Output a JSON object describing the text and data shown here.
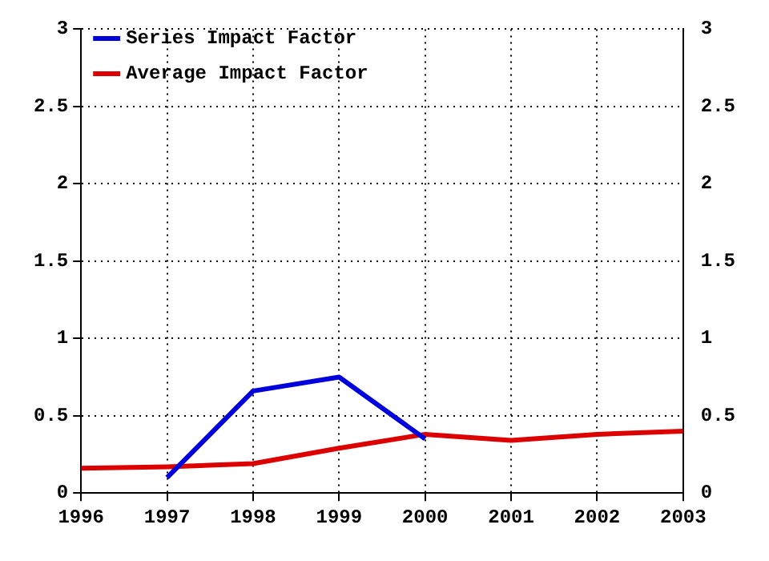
{
  "chart_data": {
    "type": "line",
    "x": [
      1996,
      1997,
      1998,
      1999,
      2000,
      2001,
      2002,
      2003
    ],
    "series": [
      {
        "name": "Series Impact Factor",
        "color": "#0000dd",
        "values": [
          null,
          0.1,
          0.66,
          0.75,
          0.35,
          null,
          null,
          null
        ]
      },
      {
        "name": "Average Impact Factor",
        "color": "#dd0000",
        "values": [
          0.16,
          0.17,
          0.19,
          0.29,
          0.38,
          0.34,
          0.38,
          0.4
        ]
      }
    ],
    "xlim": [
      1996,
      2003
    ],
    "xticks": [
      1996,
      1997,
      1998,
      1999,
      2000,
      2001,
      2002,
      2003
    ],
    "ylim": [
      0,
      3
    ],
    "yticks": [
      0,
      0.5,
      1,
      1.5,
      2,
      2.5,
      3
    ],
    "y2lim": [
      0,
      3
    ],
    "y2ticks": [
      0,
      0.5,
      1,
      1.5,
      2,
      2.5,
      3
    ],
    "grid": true,
    "legend": "top left",
    "marker": "none",
    "line_style": "solid"
  }
}
